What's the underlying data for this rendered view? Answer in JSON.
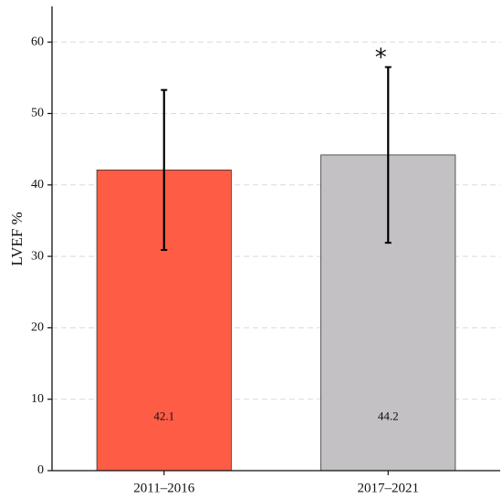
{
  "chart_data": {
    "type": "bar",
    "title": "",
    "xlabel": "",
    "ylabel": "LVEF %",
    "ylim": [
      0,
      65
    ],
    "yticks": [
      0,
      10,
      20,
      30,
      40,
      50,
      60
    ],
    "grid": "horizontal dashed",
    "categories": [
      "2011–2016",
      "2017–2021"
    ],
    "values": [
      42.1,
      44.2
    ],
    "value_labels": [
      "42.1",
      "44.2"
    ],
    "error_lower": [
      30.9,
      31.9
    ],
    "error_upper": [
      53.3,
      56.5
    ],
    "significance": [
      "",
      "*"
    ],
    "colors": [
      "#ff5c45",
      "#c3c1c3"
    ]
  }
}
